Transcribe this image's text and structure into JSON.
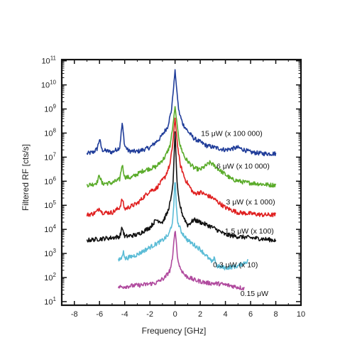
{
  "chart_data": {
    "type": "line",
    "xlabel": "Frequency [GHz]",
    "ylabel": "Filtered RF [cts/s]",
    "xlim": [
      -9,
      10
    ],
    "ylim_log10": [
      0.85,
      11.05
    ],
    "y_scale": "log",
    "x_ticks": [
      -8,
      -6,
      -4,
      -2,
      0,
      2,
      4,
      6,
      8,
      10
    ],
    "y_ticks": [
      {
        "base": "10",
        "exp": "1"
      },
      {
        "base": "10",
        "exp": "2"
      },
      {
        "base": "10",
        "exp": "3"
      },
      {
        "base": "10",
        "exp": "4"
      },
      {
        "base": "10",
        "exp": "5"
      },
      {
        "base": "10",
        "exp": "6"
      },
      {
        "base": "10",
        "exp": "7"
      },
      {
        "base": "10",
        "exp": "8"
      },
      {
        "base": "10",
        "exp": "9"
      },
      {
        "base": "10",
        "exp": "10"
      },
      {
        "base": "10",
        "exp": "11"
      }
    ],
    "grid": false,
    "series": [
      {
        "name": "15 μW (x 100 000)",
        "color": "#1f3c99",
        "label_at": [
          4.5,
          8.0
        ],
        "x": [
          -7.0,
          -6.5,
          -6.2,
          -6.0,
          -5.8,
          -5.0,
          -4.4,
          -4.2,
          -4.0,
          -3.7,
          -3.0,
          -2.0,
          -1.2,
          -0.6,
          -0.3,
          -0.15,
          0.0,
          0.15,
          0.3,
          0.6,
          1.0,
          1.5,
          2.5,
          4.0,
          5.0,
          6.0,
          7.0,
          8.0
        ],
        "y": [
          14000000.0,
          16000000.0,
          22000000.0,
          55000000.0,
          20000000.0,
          16000000.0,
          25000000.0,
          250000000.0,
          30000000.0,
          18000000.0,
          17000000.0,
          25000000.0,
          60000000.0,
          180000000.0,
          800000000.0,
          5000000000.0,
          40000000000.0,
          5000000000.0,
          800000000.0,
          250000000.0,
          120000000.0,
          60000000.0,
          30000000.0,
          20000000.0,
          25000000.0,
          16000000.0,
          14000000.0,
          14000000.0
        ]
      },
      {
        "name": "6 μW (x 10 000)",
        "color": "#5aab2a",
        "label_at": [
          5.4,
          6.65
        ],
        "x": [
          -7.0,
          -6.5,
          -6.2,
          -6.0,
          -5.8,
          -5.0,
          -4.4,
          -4.2,
          -4.0,
          -3.5,
          -2.5,
          -1.5,
          -0.8,
          -0.4,
          -0.2,
          0.0,
          0.2,
          0.4,
          0.8,
          1.5,
          2.0,
          2.8,
          3.5,
          4.5,
          5.5,
          6.5,
          7.5,
          8.0
        ],
        "y": [
          700000.0,
          750000.0,
          900000.0,
          1800000.0,
          800000.0,
          850000.0,
          1200000.0,
          5000000.0,
          1500000.0,
          1400000.0,
          2800000.0,
          4000000.0,
          10000000.0,
          30000000.0,
          150000000.0,
          1200000000.0,
          150000000.0,
          30000000.0,
          9000000.0,
          3500000.0,
          3000000.0,
          6000000.0,
          3000000.0,
          1200000.0,
          900000.0,
          800000.0,
          700000.0,
          700000.0
        ]
      },
      {
        "name": "3 μW (x 1 000)",
        "color": "#e02020",
        "label_at": [
          6.0,
          5.15
        ],
        "x": [
          -7.0,
          -6.5,
          -6.2,
          -6.0,
          -5.8,
          -5.0,
          -4.4,
          -4.2,
          -4.0,
          -3.0,
          -2.0,
          -1.5,
          -0.8,
          -0.4,
          -0.2,
          0.0,
          0.2,
          0.4,
          0.8,
          1.5,
          2.0,
          3.0,
          4.0,
          5.0,
          6.0,
          7.0,
          8.0
        ],
        "y": [
          40000.0,
          45000.0,
          55000.0,
          80000.0,
          50000.0,
          50000.0,
          80000.0,
          180000.0,
          70000.0,
          120000.0,
          400000.0,
          500000.0,
          1500000.0,
          5000000.0,
          30000000.0,
          400000000.0,
          30000000.0,
          5000000.0,
          1200000.0,
          300000.0,
          350000.0,
          200000.0,
          80000.0,
          50000.0,
          45000.0,
          40000.0,
          40000.0
        ]
      },
      {
        "name": "1.5 μW (x 100)",
        "color": "#111111",
        "label_at": [
          5.9,
          3.95
        ],
        "x": [
          -7.0,
          -6.0,
          -5.0,
          -4.4,
          -4.2,
          -4.0,
          -3.0,
          -2.0,
          -1.5,
          -1.0,
          -0.6,
          -0.3,
          -0.15,
          0.0,
          0.15,
          0.3,
          0.6,
          1.0,
          1.5,
          2.0,
          3.0,
          4.0,
          5.0,
          6.0,
          7.0,
          8.0
        ],
        "y": [
          3500.0,
          4000.0,
          4500.0,
          5000.0,
          12000.0,
          5000.0,
          6000.0,
          12000.0,
          25000.0,
          20000.0,
          50000.0,
          200000.0,
          1000000.0,
          120000000.0,
          1000000.0,
          150000.0,
          40000.0,
          15000.0,
          25000.0,
          20000.0,
          12000.0,
          6000.0,
          5000.0,
          4500.0,
          4000.0,
          3500.0
        ]
      },
      {
        "name": "0.3 μW (x 10)",
        "color": "#5bbcd6",
        "label_at": [
          4.8,
          2.55
        ],
        "x": [
          -4.5,
          -4.2,
          -4.1,
          -4.0,
          -3.0,
          -2.0,
          -1.0,
          -0.5,
          -0.2,
          -0.1,
          0.0,
          0.1,
          0.2,
          0.5,
          1.0,
          2.0,
          3.0,
          3.1,
          3.3,
          4.0,
          5.0,
          5.8
        ],
        "y": [
          500,
          700,
          1500,
          600,
          900,
          1800,
          3500,
          6000,
          20000,
          100000,
          1500000.0,
          100000,
          20000,
          8000,
          3500,
          1500,
          400,
          800,
          300,
          250,
          300,
          500
        ]
      },
      {
        "name": "0.15 μW",
        "color": "#b04a9e",
        "label_at": [
          6.3,
          1.35
        ],
        "x": [
          -4.5,
          -3.5,
          -2.5,
          -1.5,
          -0.8,
          -0.4,
          -0.2,
          -0.1,
          0.0,
          0.1,
          0.2,
          0.4,
          0.8,
          1.5,
          2.5,
          3.5,
          4.5,
          5.5
        ],
        "y": [
          40,
          45,
          50,
          60,
          100,
          200,
          600,
          3000,
          10000,
          3000,
          600,
          250,
          120,
          80,
          60,
          55,
          45,
          35
        ]
      }
    ]
  }
}
